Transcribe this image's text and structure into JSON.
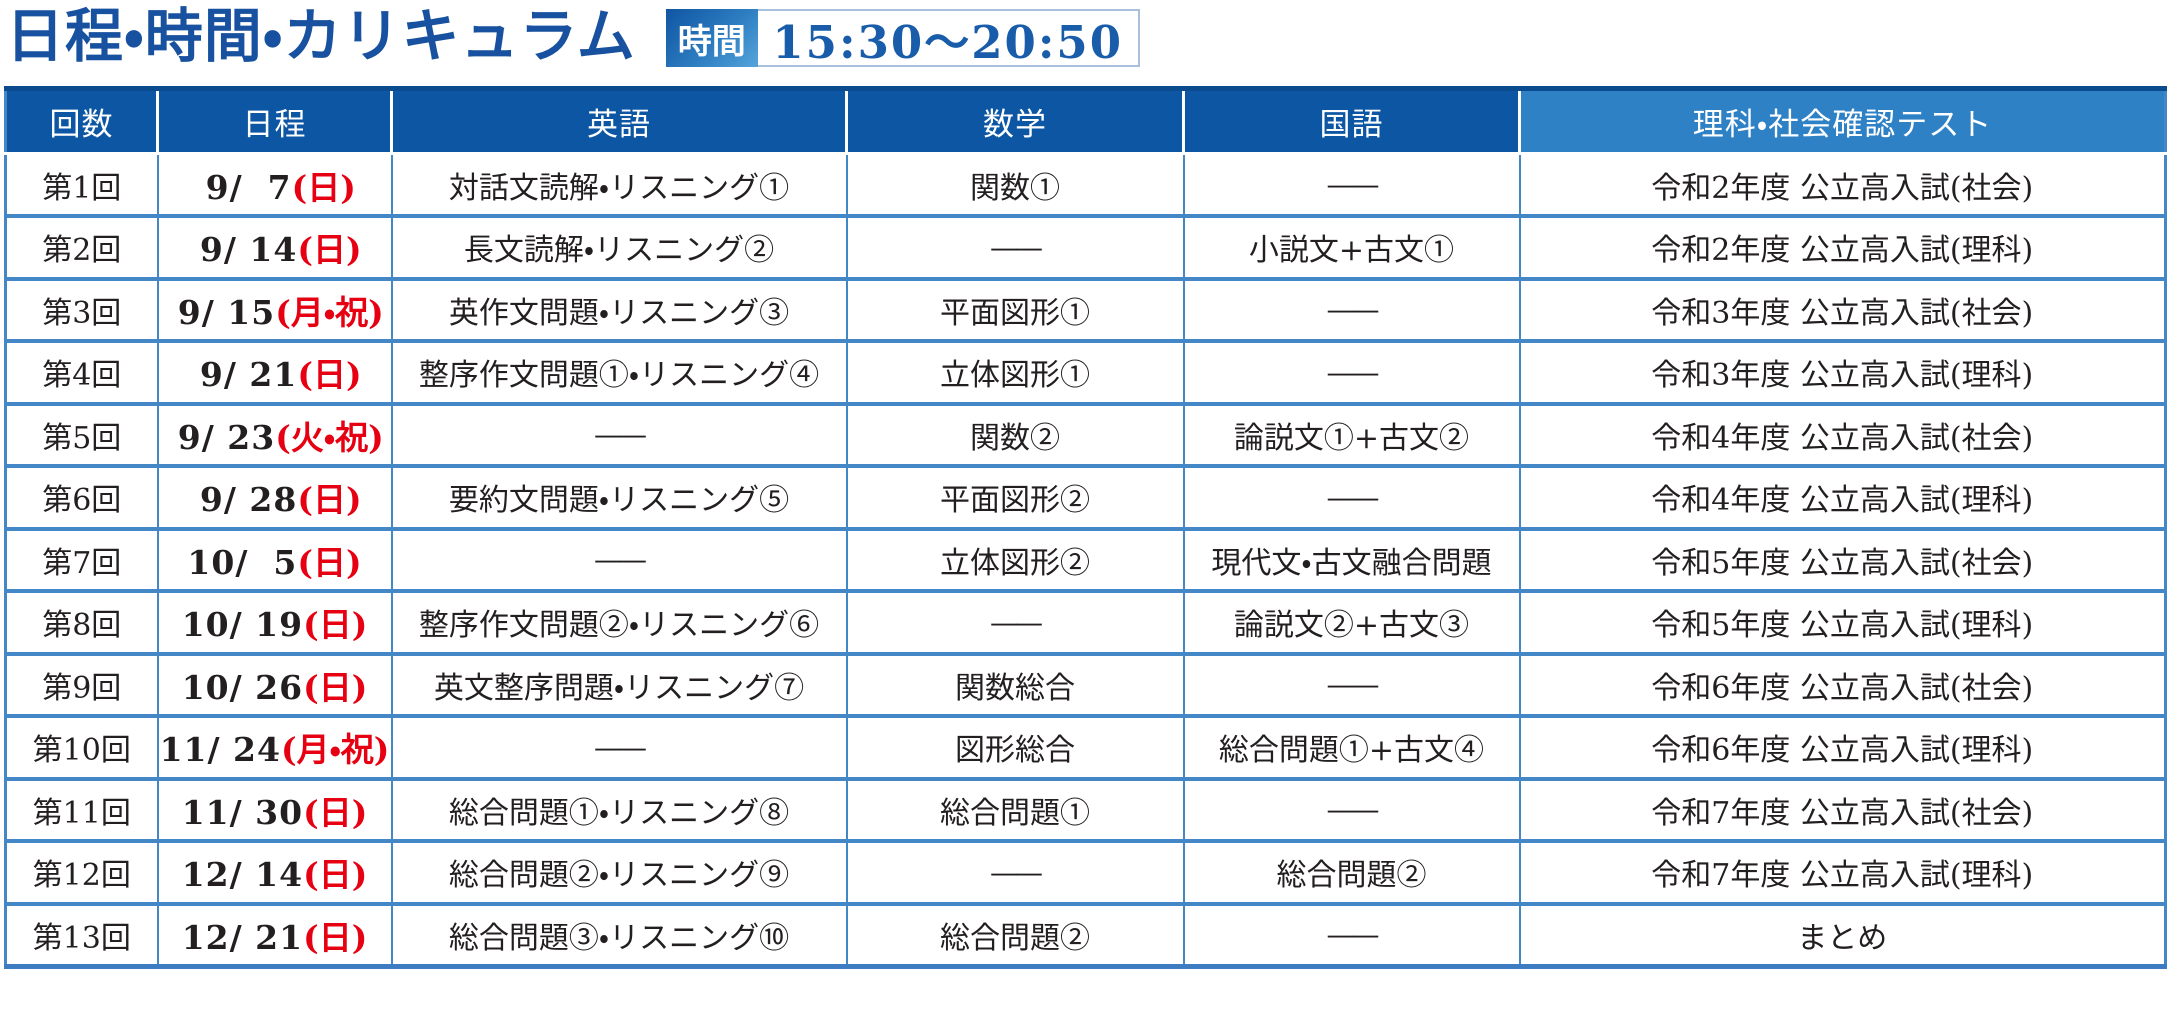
{
  "header": {
    "title": "日程・時間・カリキュラム",
    "time_label": "時間",
    "time_value": "15:30〜20:50"
  },
  "table": {
    "columns": [
      {
        "key": "session",
        "label": "回数"
      },
      {
        "key": "date",
        "label": "日程"
      },
      {
        "key": "english",
        "label": "英語"
      },
      {
        "key": "math",
        "label": "数学"
      },
      {
        "key": "japanese",
        "label": "国語"
      },
      {
        "key": "science_social",
        "label": "理科・社会確認テスト"
      }
    ],
    "empty_mark": "——",
    "rows": [
      {
        "session": "第1回",
        "date_num": " 9/  7",
        "date_week": "(日)",
        "english": "対話文読解・リスニング①",
        "math": "関数①",
        "japanese": "——",
        "science_social": "令和2年度 公立高入試(社会)"
      },
      {
        "session": "第2回",
        "date_num": " 9/ 14",
        "date_week": "(日)",
        "english": "長文読解・リスニング②",
        "math": "——",
        "japanese": "小説文+古文①",
        "science_social": "令和2年度 公立高入試(理科)"
      },
      {
        "session": "第3回",
        "date_num": " 9/ 15",
        "date_week": "(月・祝)",
        "english": "英作文問題・リスニング③",
        "math": "平面図形①",
        "japanese": "——",
        "science_social": "令和3年度 公立高入試(社会)"
      },
      {
        "session": "第4回",
        "date_num": " 9/ 21",
        "date_week": "(日)",
        "english": "整序作文問題①・リスニング④",
        "math": "立体図形①",
        "japanese": "——",
        "science_social": "令和3年度 公立高入試(理科)"
      },
      {
        "session": "第5回",
        "date_num": " 9/ 23",
        "date_week": "(火・祝)",
        "english": "——",
        "math": "関数②",
        "japanese": "論説文①+古文②",
        "science_social": "令和4年度 公立高入試(社会)"
      },
      {
        "session": "第6回",
        "date_num": " 9/ 28",
        "date_week": "(日)",
        "english": "要約文問題・リスニング⑤",
        "math": "平面図形②",
        "japanese": "——",
        "science_social": "令和4年度 公立高入試(理科)"
      },
      {
        "session": "第7回",
        "date_num": "10/  5",
        "date_week": "(日)",
        "english": "——",
        "math": "立体図形②",
        "japanese": "現代文・古文融合問題",
        "science_social": "令和5年度 公立高入試(社会)"
      },
      {
        "session": "第8回",
        "date_num": "10/ 19",
        "date_week": "(日)",
        "english": "整序作文問題②・リスニング⑥",
        "math": "——",
        "japanese": "論説文②+古文③",
        "science_social": "令和5年度 公立高入試(理科)"
      },
      {
        "session": "第9回",
        "date_num": "10/ 26",
        "date_week": "(日)",
        "english": "英文整序問題・リスニング⑦",
        "math": "関数総合",
        "japanese": "——",
        "science_social": "令和6年度 公立高入試(社会)"
      },
      {
        "session": "第10回",
        "date_num": "11/ 24",
        "date_week": "(月・祝)",
        "english": "——",
        "math": "図形総合",
        "japanese": "総合問題①+古文④",
        "science_social": "令和6年度 公立高入試(理科)"
      },
      {
        "session": "第11回",
        "date_num": "11/ 30",
        "date_week": "(日)",
        "english": "総合問題①・リスニング⑧",
        "math": "総合問題①",
        "japanese": "——",
        "science_social": "令和7年度 公立高入試(社会)"
      },
      {
        "session": "第12回",
        "date_num": "12/ 14",
        "date_week": "(日)",
        "english": "総合問題②・リスニング⑨",
        "math": "——",
        "japanese": "総合問題②",
        "science_social": "令和7年度 公立高入試(理科)"
      },
      {
        "session": "第13回",
        "date_num": "12/ 21",
        "date_week": "(日)",
        "english": "総合問題③・リスニング⑩",
        "math": "総合問題②",
        "japanese": "——",
        "science_social": "まとめ"
      }
    ]
  },
  "colors": {
    "title_blue": "#17519f",
    "header_dark_blue": "#0d56a4",
    "header_light_blue": "#2f81c5",
    "grid_blue": "#4387c6",
    "accent_red": "#e60012",
    "time_text_blue": "#195ca9"
  }
}
